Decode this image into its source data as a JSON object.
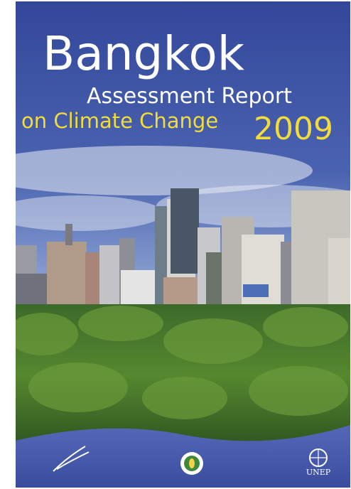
{
  "cover": {
    "title": "Bangkok",
    "subtitle": "Assessment Report",
    "topic": "on Climate Change",
    "year": "2009",
    "publisher": "UNEP"
  }
}
